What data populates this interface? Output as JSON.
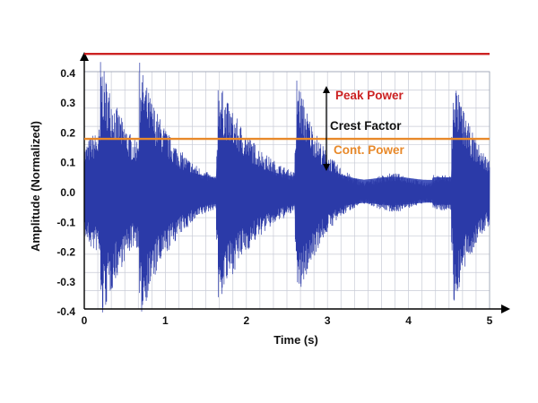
{
  "chart_data": {
    "type": "line",
    "xlabel": "Time (s)",
    "ylabel": "Amplitude (Normalized)",
    "xlim": [
      0,
      5
    ],
    "ylim": [
      -0.5,
      0.5
    ],
    "x_ticks": [
      "0",
      "1",
      "2",
      "3",
      "4",
      "5"
    ],
    "y_ticks": [
      "0.4",
      "0.3",
      "0.2",
      "0.1",
      "0.0",
      "-0.1",
      "-0.2",
      "-0.3",
      "-0.4"
    ],
    "grid": true,
    "waveform_color": "#2b3aa8",
    "waveform_fill_color": "#3c4db8",
    "transients": [
      {
        "x": 0.2,
        "peak_pos": 0.45,
        "peak_neg": -0.45
      },
      {
        "x": 0.68,
        "peak_pos": 0.44,
        "peak_neg": -0.44
      },
      {
        "x": 1.65,
        "peak_pos": 0.38,
        "peak_neg": -0.35
      },
      {
        "x": 2.62,
        "peak_pos": 0.4,
        "peak_neg": -0.38
      },
      {
        "x": 4.55,
        "peak_pos": 0.4,
        "peak_neg": -0.38
      }
    ],
    "reference_lines": [
      {
        "name": "Peak Power",
        "value": 0.465,
        "color": "#cc2222"
      },
      {
        "name": "Cont. Power",
        "value": 0.18,
        "color": "#e8892a"
      }
    ],
    "annotations": {
      "peak_label": "Peak Power",
      "peak_color": "#cc2222",
      "crest_label": "Crest Factor",
      "crest_color": "#111111",
      "cont_label": "Cont. Power",
      "cont_color": "#e8892a"
    }
  }
}
